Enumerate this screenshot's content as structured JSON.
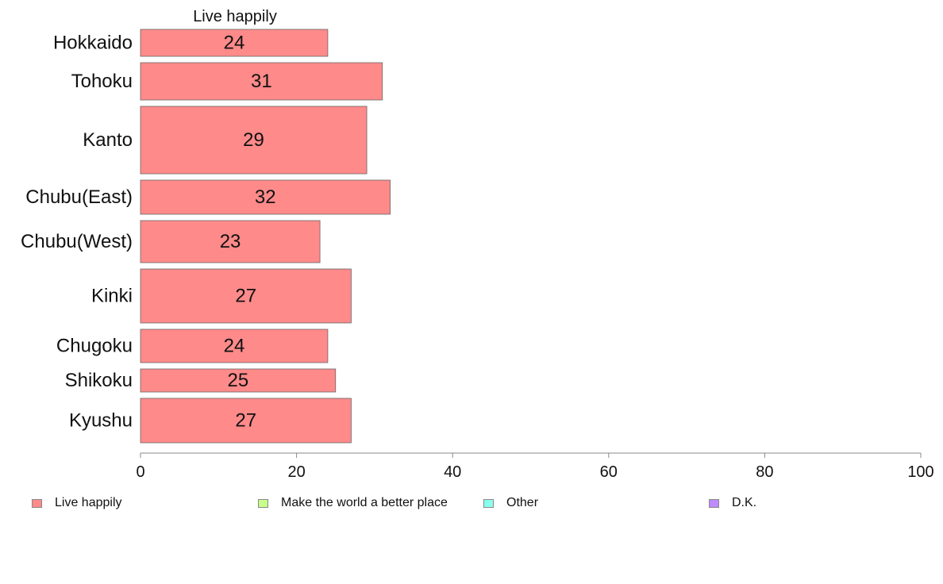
{
  "chart_data": {
    "type": "bar",
    "orientation": "horizontal",
    "segment_title": "Live happily",
    "categories": [
      "Hokkaido",
      "Tohoku",
      "Kanto",
      "Chubu(East)",
      "Chubu(West)",
      "Kinki",
      "Chugoku",
      "Shikoku",
      "Kyushu"
    ],
    "series": [
      {
        "name": "Live happily",
        "values": [
          24,
          31,
          29,
          32,
          23,
          27,
          24,
          25,
          27
        ],
        "color": "#ff8a8a"
      }
    ],
    "xlim": [
      0,
      100
    ],
    "x_ticks": [
      0,
      20,
      40,
      60,
      80,
      100
    ],
    "grid": false,
    "legend_position": "bottom"
  },
  "legend": [
    {
      "label": "Live happily",
      "color": "#ff8a8a"
    },
    {
      "label": "Make the world a better place",
      "color": "#c8ff8a"
    },
    {
      "label": "Other",
      "color": "#8affee"
    },
    {
      "label": "D.K.",
      "color": "#c08aff"
    }
  ]
}
